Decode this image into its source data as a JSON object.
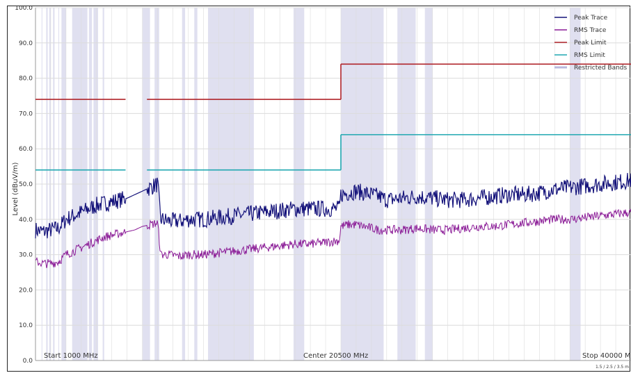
{
  "chart_data": {
    "type": "line",
    "title": "",
    "xlabel": "",
    "ylabel": "Level (dBuV/m)",
    "xlim": [
      1000,
      40000
    ],
    "ylim": [
      0,
      100
    ],
    "y_ticks": [
      "0.0",
      "10.0",
      "20.0",
      "30.0",
      "40.0",
      "50.0",
      "60.0",
      "70.0",
      "80.0",
      "90.0",
      "100.0"
    ],
    "x_labels": {
      "start": "Start 1000 MHz",
      "center": "Center 20500 MHz",
      "stop": "Stop 40000 MHz"
    },
    "corner_note": "1.5 / 2.5 / 3.5 m",
    "grid": true,
    "legend_position": "top-right",
    "legend": [
      "Peak Trace",
      "RMS Trace",
      "Peak Limit",
      "RMS Limit",
      "Restricted Bands"
    ],
    "colors": {
      "peak_trace": "#14127a",
      "rms_trace": "#8a1a96",
      "peak_limit": "#b0242a",
      "rms_limit": "#1fa7b0",
      "restricted": "#e0e0f0",
      "grid": "#dcdcdc"
    },
    "restricted_bands_mhz": [
      [
        1400,
        1450
      ],
      [
        1700,
        1800
      ],
      [
        1900,
        2000
      ],
      [
        2150,
        2250
      ],
      [
        2500,
        2550
      ],
      [
        2700,
        3000
      ],
      [
        3400,
        4400
      ],
      [
        4500,
        4700
      ],
      [
        4800,
        5100
      ],
      [
        5400,
        5500
      ],
      [
        8000,
        8500
      ],
      [
        8800,
        9100
      ],
      [
        10600,
        10800
      ],
      [
        11400,
        11600
      ],
      [
        12300,
        15300
      ],
      [
        17900,
        18600
      ],
      [
        21000,
        23800
      ],
      [
        24700,
        25900
      ],
      [
        26500,
        27000
      ],
      [
        36000,
        36700
      ]
    ],
    "series": [
      {
        "name": "Peak Limit",
        "segments": [
          {
            "x": [
              1000,
              6900
            ],
            "y": [
              74,
              74
            ]
          },
          {
            "x": [
              8300,
              21000
            ],
            "y": [
              74,
              74
            ]
          },
          {
            "x": [
              21000,
              21000
            ],
            "y": [
              74,
              84
            ]
          },
          {
            "x": [
              21000,
              40000
            ],
            "y": [
              84,
              84
            ]
          }
        ]
      },
      {
        "name": "RMS Limit",
        "segments": [
          {
            "x": [
              1000,
              6900
            ],
            "y": [
              54,
              54
            ]
          },
          {
            "x": [
              8300,
              21000
            ],
            "y": [
              54,
              54
            ]
          },
          {
            "x": [
              21000,
              21000
            ],
            "y": [
              54,
              64
            ]
          },
          {
            "x": [
              21000,
              40000
            ],
            "y": [
              64,
              64
            ]
          }
        ]
      },
      {
        "name": "Peak Trace",
        "x": [
          1000,
          1500,
          2000,
          2500,
          3000,
          3500,
          4000,
          4500,
          5000,
          5500,
          6000,
          6500,
          7000,
          7500,
          8000,
          8500,
          9000,
          9200,
          9800,
          10500,
          11000,
          12000,
          13000,
          14000,
          15000,
          16000,
          17000,
          18000,
          19000,
          20000,
          20900,
          21000,
          21500,
          22000,
          22500,
          23000,
          23500,
          24000,
          25000,
          26000,
          27000,
          28000,
          29000,
          30000,
          31000,
          32000,
          33000,
          34000,
          35000,
          36000,
          37000,
          38000,
          39000,
          40000
        ],
        "y": [
          37,
          36.5,
          37,
          37.5,
          40,
          41,
          42,
          43,
          44,
          44.5,
          45,
          45.5,
          46,
          47,
          48,
          49,
          50,
          40,
          39.5,
          39.5,
          40,
          40,
          40.5,
          41,
          41.5,
          42,
          42.5,
          43,
          43,
          43,
          43,
          47,
          47.5,
          48,
          47.5,
          47,
          46.5,
          45.5,
          46,
          46.5,
          46,
          45.5,
          45.5,
          46,
          46.5,
          47,
          47,
          47.5,
          48.5,
          49,
          49.5,
          50,
          50.5,
          51
        ]
      },
      {
        "name": "RMS Trace",
        "x": [
          1000,
          1500,
          2000,
          2500,
          3000,
          3500,
          4000,
          4500,
          5000,
          5500,
          6000,
          6500,
          7000,
          7500,
          8000,
          8500,
          9000,
          9200,
          9800,
          10500,
          11000,
          12000,
          13000,
          14000,
          15000,
          16000,
          17000,
          18000,
          19000,
          20000,
          20900,
          21000,
          21500,
          22000,
          22500,
          23000,
          23500,
          24000,
          25000,
          26000,
          27000,
          28000,
          29000,
          30000,
          31000,
          32000,
          33000,
          34000,
          35000,
          36000,
          37000,
          38000,
          39000,
          40000
        ],
        "y": [
          28,
          27.5,
          27.5,
          28,
          30,
          31,
          32,
          33,
          34,
          35,
          35.5,
          36,
          36.5,
          37,
          38,
          38.5,
          39,
          30,
          30,
          29.5,
          30,
          30,
          30.5,
          31,
          31.5,
          32,
          32.5,
          33,
          33,
          33.5,
          34,
          38,
          38.5,
          38.5,
          38,
          37.5,
          37,
          37,
          37,
          37.5,
          37,
          37,
          37.5,
          38,
          38,
          38.5,
          39,
          39.5,
          40,
          40,
          40.5,
          41,
          41.5,
          42
        ]
      }
    ]
  }
}
